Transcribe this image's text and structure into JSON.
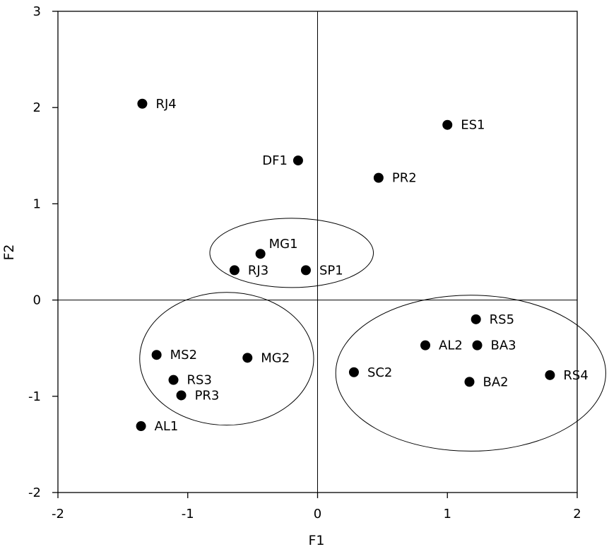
{
  "chart_data": {
    "type": "scatter",
    "title": "",
    "xlabel": "F1",
    "ylabel": "F2",
    "xlim": [
      -2,
      2
    ],
    "ylim": [
      -2,
      3
    ],
    "xticks": [
      -2,
      -1,
      0,
      1,
      2
    ],
    "yticks": [
      -2,
      -1,
      0,
      1,
      2,
      3
    ],
    "xtick_labels": [
      "-2",
      "-1",
      "0",
      "1",
      "2"
    ],
    "ytick_labels": [
      "-2",
      "-1",
      "0",
      "1",
      "2",
      "3"
    ],
    "grid": false,
    "reference_lines": {
      "x": 0,
      "y": 0
    },
    "points": [
      {
        "label": "RJ4",
        "x": -1.35,
        "y": 2.04,
        "label_side": "right"
      },
      {
        "label": "DF1",
        "x": -0.15,
        "y": 1.45,
        "label_side": "left"
      },
      {
        "label": "ES1",
        "x": 1.0,
        "y": 1.82,
        "label_side": "right"
      },
      {
        "label": "PR2",
        "x": 0.47,
        "y": 1.27,
        "label_side": "right"
      },
      {
        "label": "MG1",
        "x": -0.44,
        "y": 0.48,
        "label_side": "above-right"
      },
      {
        "label": "RJ3",
        "x": -0.64,
        "y": 0.31,
        "label_side": "right"
      },
      {
        "label": "SP1",
        "x": -0.09,
        "y": 0.31,
        "label_side": "right"
      },
      {
        "label": "MS2",
        "x": -1.24,
        "y": -0.57,
        "label_side": "right"
      },
      {
        "label": "MG2",
        "x": -0.54,
        "y": -0.6,
        "label_side": "right"
      },
      {
        "label": "RS3",
        "x": -1.11,
        "y": -0.83,
        "label_side": "right"
      },
      {
        "label": "PR3",
        "x": -1.05,
        "y": -0.99,
        "label_side": "right"
      },
      {
        "label": "AL1",
        "x": -1.36,
        "y": -1.31,
        "label_side": "right"
      },
      {
        "label": "RS5",
        "x": 1.22,
        "y": -0.2,
        "label_side": "right"
      },
      {
        "label": "AL2",
        "x": 0.83,
        "y": -0.47,
        "label_side": "right"
      },
      {
        "label": "BA3",
        "x": 1.23,
        "y": -0.47,
        "label_side": "right"
      },
      {
        "label": "SC2",
        "x": 0.28,
        "y": -0.75,
        "label_side": "right"
      },
      {
        "label": "BA2",
        "x": 1.17,
        "y": -0.85,
        "label_side": "right"
      },
      {
        "label": "RS4",
        "x": 1.79,
        "y": -0.78,
        "label_side": "right"
      }
    ],
    "ellipses": [
      {
        "name": "group-mg1",
        "cx": -0.2,
        "cy": 0.49,
        "rx": 0.63,
        "ry": 0.36
      },
      {
        "name": "group-ms2",
        "cx": -0.7,
        "cy": -0.61,
        "rx": 0.67,
        "ry": 0.69
      },
      {
        "name": "group-rs",
        "cx": 1.18,
        "cy": -0.76,
        "rx": 1.04,
        "ry": 0.81
      }
    ]
  }
}
